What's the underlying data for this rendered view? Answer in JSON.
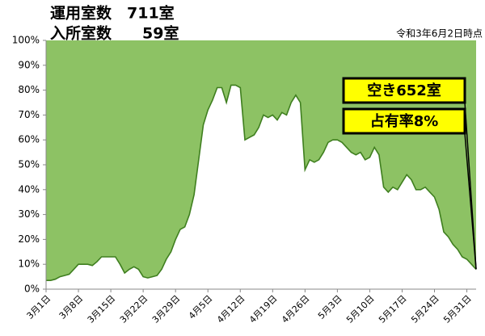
{
  "chart_data": {
    "type": "area",
    "info_lines": [
      "運用室数　711室",
      "入所室数　　59室"
    ],
    "date_note": "令和3年6月2日時点",
    "annotations": [
      "空き652室",
      "占有率8%"
    ],
    "categories": [
      "3月1日",
      null,
      null,
      null,
      null,
      null,
      null,
      "3月8日",
      null,
      null,
      null,
      null,
      null,
      null,
      "3月15日",
      null,
      null,
      null,
      null,
      null,
      null,
      "3月22日",
      null,
      null,
      null,
      null,
      null,
      null,
      "3月29日",
      null,
      null,
      null,
      null,
      null,
      null,
      "4月5日",
      null,
      null,
      null,
      null,
      null,
      null,
      "4月12日",
      null,
      null,
      null,
      null,
      null,
      null,
      "4月19日",
      null,
      null,
      null,
      null,
      null,
      null,
      "4月26日",
      null,
      null,
      null,
      null,
      null,
      null,
      "5月3日",
      null,
      null,
      null,
      null,
      null,
      null,
      "5月10日",
      null,
      null,
      null,
      null,
      null,
      null,
      "5月17日",
      null,
      null,
      null,
      null,
      null,
      null,
      "5月24日",
      null,
      null,
      null,
      null,
      null,
      null,
      "5月31日",
      null,
      null
    ],
    "values": [
      3.5,
      3.5,
      4,
      5,
      5.5,
      6,
      8,
      10,
      10,
      10,
      9.5,
      11,
      13,
      13,
      13,
      13,
      10,
      6.5,
      8,
      9,
      8,
      5,
      4.5,
      5,
      5.5,
      8,
      12,
      15,
      20,
      24,
      25,
      30,
      38,
      52,
      66,
      72,
      76,
      81,
      81,
      75,
      82,
      82,
      81,
      60,
      61,
      62,
      65,
      70,
      69,
      70,
      68,
      71,
      70,
      75,
      78,
      75,
      48,
      52,
      51,
      52,
      55,
      59,
      60,
      60,
      59,
      57,
      55,
      54,
      55,
      52,
      53,
      57,
      54,
      41,
      39,
      41,
      40,
      43,
      46,
      44,
      40,
      40,
      41,
      39,
      37,
      32,
      23,
      21,
      18,
      16,
      13,
      12,
      10,
      8
    ],
    "color": "#3f7f1f",
    "background": "#8dc264",
    "fill": "#ffffff",
    "ylim": [
      0,
      100
    ],
    "yticks": [
      {
        "value": 0,
        "label": "0%"
      },
      {
        "value": 10,
        "label": "10%"
      },
      {
        "value": 20,
        "label": "20%"
      },
      {
        "value": 30,
        "label": "30%"
      },
      {
        "value": 40,
        "label": "40%"
      },
      {
        "value": 50,
        "label": "50%"
      },
      {
        "value": 60,
        "label": "60%"
      },
      {
        "value": 70,
        "label": "70%"
      },
      {
        "value": 80,
        "label": "80%"
      },
      {
        "value": 90,
        "label": "90%"
      },
      {
        "value": 100,
        "label": "100%"
      }
    ]
  }
}
